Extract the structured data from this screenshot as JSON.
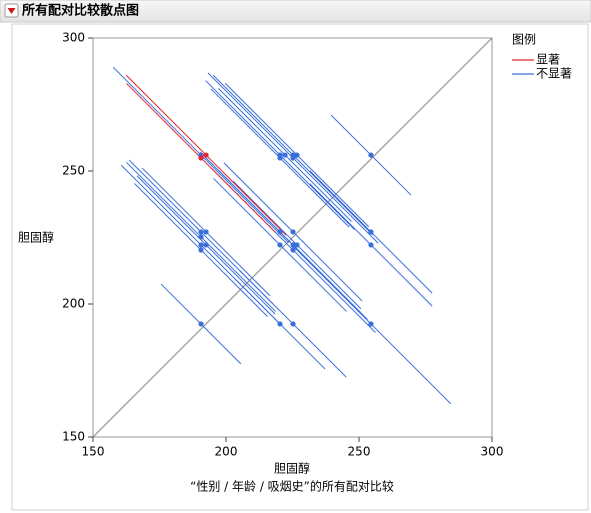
{
  "chart_data": {
    "type": "diffogram",
    "title": "所有配对比较散点图",
    "x_label": "胆固醇",
    "subtitle": "“性别 / 年龄 / 吸烟史”的所有配对比较",
    "y_label": "胆固醇",
    "legend_title": "图例",
    "xlim": [
      150,
      300
    ],
    "ylim": [
      150,
      300
    ],
    "xticks": [
      150,
      200,
      250,
      300
    ],
    "yticks": [
      150,
      200,
      250,
      300
    ],
    "series": [
      {
        "name": "显著",
        "color": "#e3262e",
        "x": [
          190.6,
          192.5
        ],
        "y": [
          254.9,
          256.0
        ],
        "half_width": [
          28,
          30
        ]
      },
      {
        "name": "不显著",
        "color": "#3a6fd9",
        "x": [
          190.6,
          220.3,
          222.2,
          225.2,
          226.7,
          254.5,
          220.3,
          225.2,
          190.6,
          192.5,
          220.3,
          225.2,
          254.5,
          190.6,
          190.6,
          192.5,
          220.3,
          225.2,
          226.7,
          254.5,
          190.6,
          225.2,
          190.6,
          220.3,
          225.2,
          254.5
        ],
        "y": [
          256.0,
          256.0,
          256.0,
          256.0,
          256.0,
          256.0,
          254.9,
          254.9,
          227.1,
          227.1,
          227.1,
          227.1,
          227.1,
          225.2,
          222.2,
          222.2,
          222.2,
          222.2,
          222.2,
          222.2,
          220.3,
          220.3,
          192.5,
          192.5,
          192.5,
          192.5
        ],
        "half_width": [
          33,
          28,
          25,
          30,
          27,
          15,
          26,
          32,
          27,
          24,
          30,
          26,
          23,
          28,
          30,
          26,
          25,
          28,
          24,
          23,
          25,
          31,
          15,
          17,
          20,
          30
        ]
      }
    ]
  }
}
